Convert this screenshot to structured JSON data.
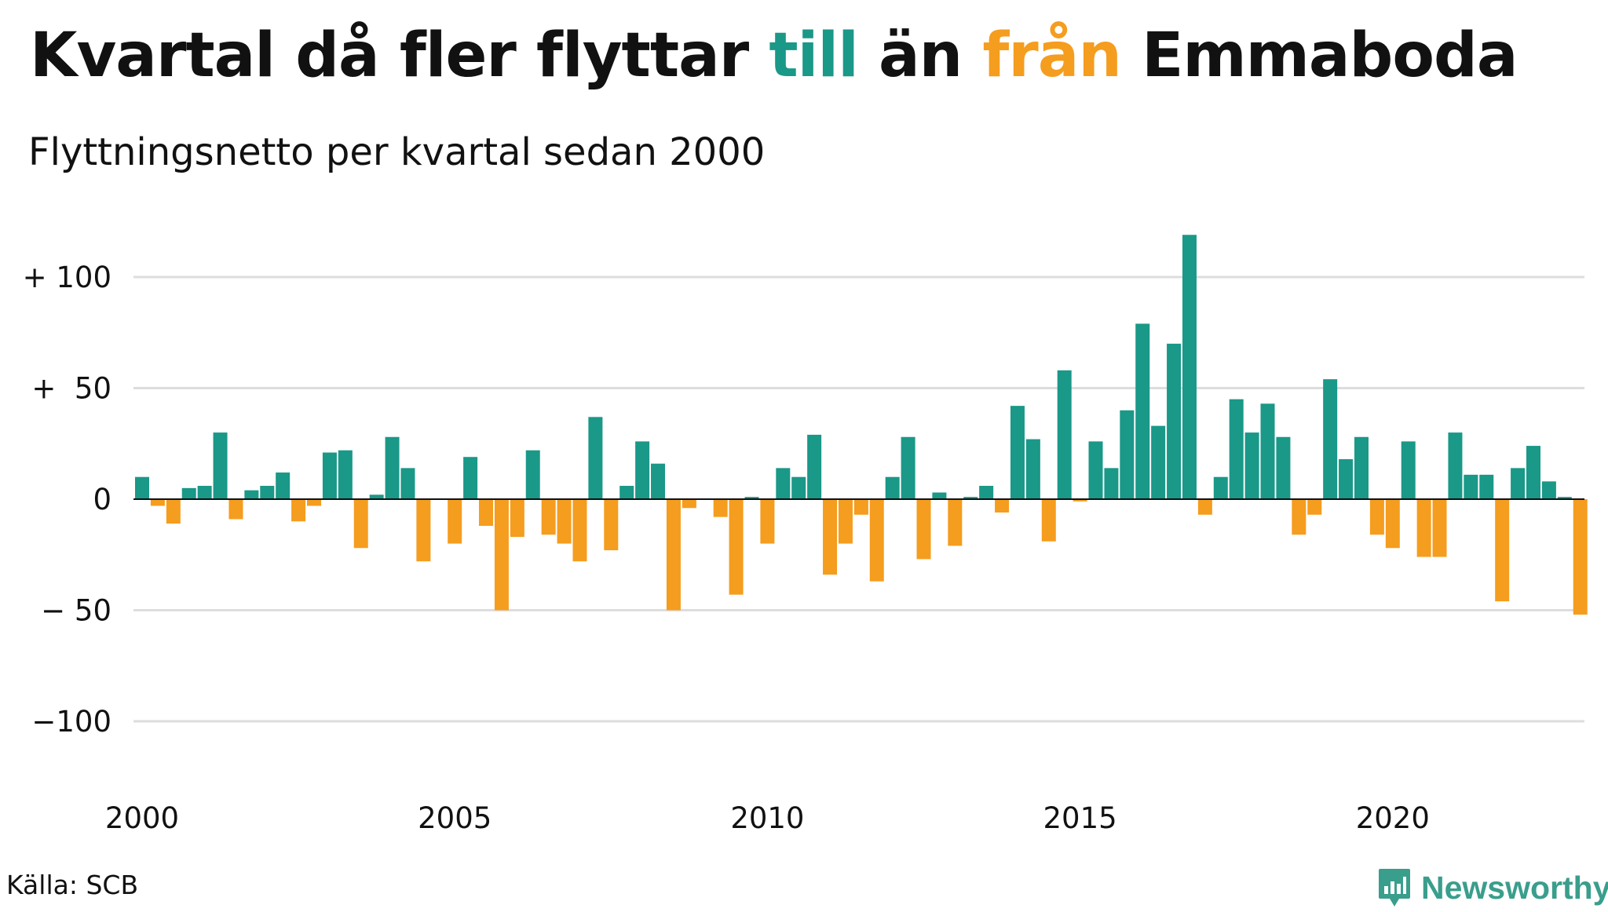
{
  "title": {
    "prefix": "Kvartal då fler flyttar ",
    "till": "till",
    "middle": " än ",
    "fran": "från",
    "suffix": " Emmaboda"
  },
  "subtitle": "Flyttningsnetto per kvartal sedan 2000",
  "source": "Källa: SCB",
  "brand": "Newsworthy",
  "icons": {
    "brand": "newsworthy-logo-icon"
  },
  "colors": {
    "positive": "#1a9888",
    "negative": "#f59d1e",
    "till": "#1a9888",
    "fran": "#f59d1e",
    "grid": "#dddddd",
    "brand": "#3a9e8c"
  },
  "chart_data": {
    "type": "bar",
    "x_start": "2000-Q1",
    "x_ticks": [
      {
        "label": "2000",
        "year": 2000
      },
      {
        "label": "2005",
        "year": 2005
      },
      {
        "label": "2010",
        "year": 2010
      },
      {
        "label": "2015",
        "year": 2015
      },
      {
        "label": "2020",
        "year": 2020
      }
    ],
    "y_ticks": [
      {
        "label": "+ 100",
        "value": 100
      },
      {
        "label": "+  50",
        "value": 50
      },
      {
        "label": "0",
        "value": 0
      },
      {
        "label": "− 50",
        "value": -50
      },
      {
        "label": "−100",
        "value": -100
      }
    ],
    "ylim": [
      -120,
      120
    ],
    "grid": true,
    "values": [
      10,
      -3,
      -11,
      5,
      6,
      30,
      -9,
      4,
      6,
      12,
      -10,
      -3,
      21,
      22,
      -22,
      2,
      28,
      14,
      -28,
      0,
      -20,
      19,
      -12,
      -50,
      -17,
      22,
      -16,
      -20,
      -28,
      37,
      -23,
      6,
      26,
      16,
      -50,
      -4,
      0,
      -8,
      -43,
      1,
      -20,
      14,
      10,
      29,
      -34,
      -20,
      -7,
      -37,
      10,
      28,
      -27,
      3,
      -21,
      1,
      6,
      -6,
      42,
      27,
      -19,
      58,
      -1,
      26,
      14,
      40,
      79,
      33,
      70,
      119,
      -7,
      10,
      45,
      30,
      43,
      28,
      -16,
      -7,
      54,
      18,
      28,
      -16,
      -22,
      26,
      -26,
      -26,
      30,
      11,
      11,
      -46,
      14,
      24,
      8,
      1,
      -52
    ]
  }
}
